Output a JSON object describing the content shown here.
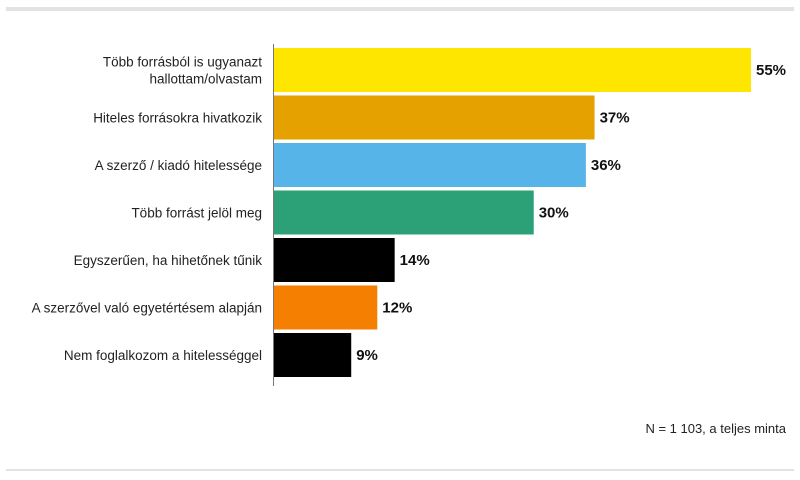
{
  "chart_data": {
    "type": "bar",
    "orientation": "horizontal",
    "categories": [
      "Több forrásból is ugyanazt hallottam/olvastam",
      "Hiteles forrásokra hivatkozik",
      "A szerző / kiadó hitelessége",
      "Több forrást jelöl meg",
      "Egyszerűen, ha hihetőnek tűnik",
      "A szerzővel való egyetértésem alapján",
      "Nem foglalkozom a hitelességgel"
    ],
    "category_lines": [
      [
        "Több forrásból is ugyanazt",
        "hallottam/olvastam"
      ],
      [
        "Hiteles forrásokra hivatkozik"
      ],
      [
        "A szerző / kiadó hitelessége"
      ],
      [
        "Több forrást jelöl meg"
      ],
      [
        "Egyszerűen, ha hihetőnek tűnik"
      ],
      [
        "A szerzővel való egyetértésem alapján"
      ],
      [
        "Nem foglalkozom a hitelességgel"
      ]
    ],
    "values": [
      55,
      37,
      36,
      30,
      14,
      12,
      9
    ],
    "value_labels": [
      "55%",
      "37%",
      "36%",
      "30%",
      "14%",
      "12%",
      "9%"
    ],
    "colors": [
      "#ffe600",
      "#e5a100",
      "#56b4e9",
      "#2ca077",
      "#000000",
      "#f57f00",
      "#000000"
    ],
    "xlim": [
      0,
      55
    ],
    "title": "",
    "xlabel": "",
    "ylabel": "",
    "grid": false,
    "legend": "none"
  },
  "note": "N = 1 103, a teljes minta"
}
